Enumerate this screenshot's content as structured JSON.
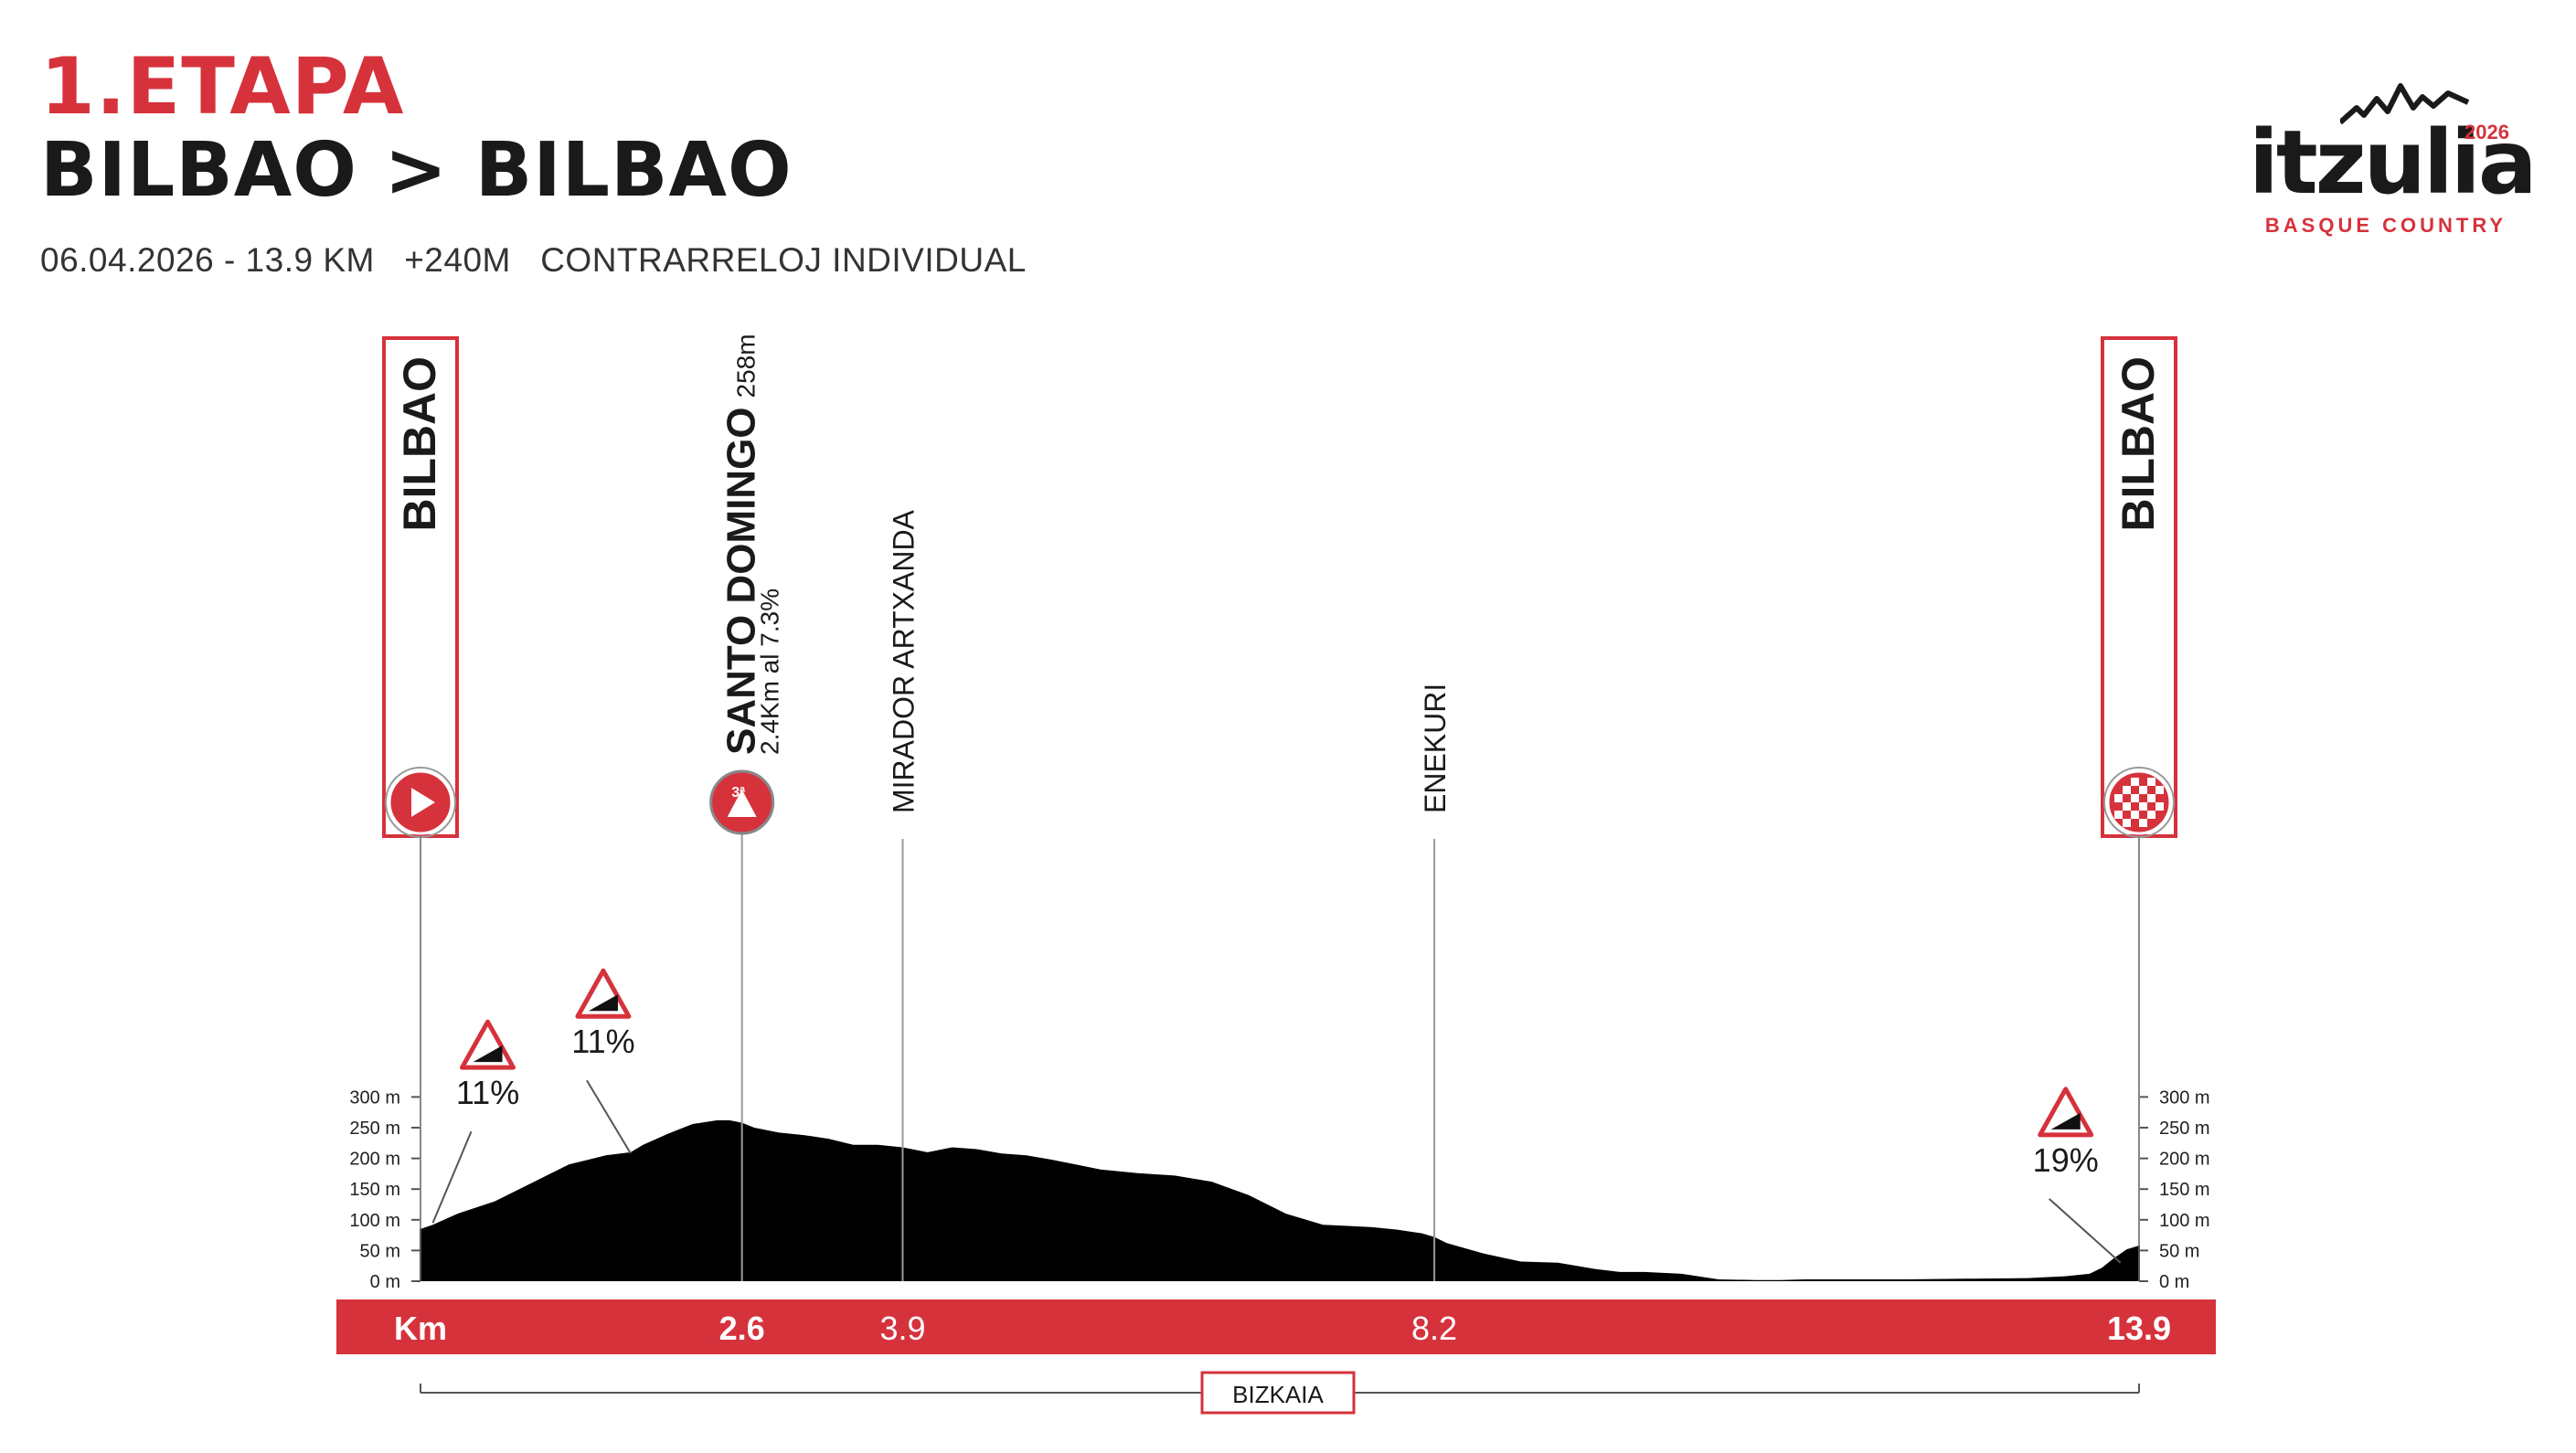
{
  "header": {
    "stage": "1.ETAPA",
    "route": "BILBAO > BILBAO",
    "meta": "06.04.2026 - 13.9 KM   +240M   CONTRARRELOJ INDIVIDUAL"
  },
  "logo": {
    "word": "itzulia",
    "year": "2026",
    "subtitle": "BASQUE COUNTRY"
  },
  "colors": {
    "accent": "#d6323c",
    "profile": "#000000",
    "text": "#1a1a1a"
  },
  "chart_data": {
    "type": "area",
    "x_label": "Km",
    "xlim": [
      0,
      13.9
    ],
    "ylim": [
      0,
      300
    ],
    "y_ticks": [
      0,
      50,
      100,
      150,
      200,
      250,
      300
    ],
    "y_tick_suffix": " m",
    "x_ticks": [
      {
        "km": 2.6,
        "label": "2.6",
        "bold": true
      },
      {
        "km": 3.9,
        "label": "3.9",
        "bold": false
      },
      {
        "km": 8.2,
        "label": "8.2",
        "bold": false
      },
      {
        "km": 13.9,
        "label": "13.9",
        "bold": true
      }
    ],
    "profile": {
      "x": [
        0,
        0.1,
        0.3,
        0.6,
        0.9,
        1.2,
        1.5,
        1.7,
        1.8,
        2.0,
        2.2,
        2.4,
        2.5,
        2.6,
        2.7,
        2.9,
        3.1,
        3.3,
        3.5,
        3.7,
        3.9,
        4.1,
        4.3,
        4.5,
        4.7,
        4.9,
        5.1,
        5.3,
        5.5,
        5.8,
        6.1,
        6.4,
        6.7,
        7.0,
        7.3,
        7.5,
        7.7,
        7.9,
        8.1,
        8.2,
        8.3,
        8.6,
        8.9,
        9.2,
        9.5,
        9.7,
        9.9,
        10.2,
        10.5,
        10.8,
        11.0,
        11.2,
        11.5,
        12.0,
        12.5,
        13.0,
        13.3,
        13.5,
        13.6,
        13.7,
        13.8,
        13.9
      ],
      "y": [
        85,
        92,
        110,
        130,
        160,
        190,
        205,
        210,
        222,
        240,
        256,
        262,
        262,
        258,
        250,
        242,
        238,
        232,
        222,
        222,
        218,
        210,
        218,
        215,
        208,
        205,
        198,
        190,
        182,
        176,
        172,
        162,
        140,
        110,
        92,
        90,
        88,
        84,
        78,
        72,
        62,
        45,
        32,
        30,
        20,
        15,
        15,
        12,
        3,
        2,
        2,
        3,
        3,
        3,
        4,
        5,
        8,
        12,
        22,
        38,
        52,
        58
      ]
    },
    "points": [
      {
        "km": 0,
        "name": "BILBAO",
        "bold": true,
        "kind": "start",
        "badge": true
      },
      {
        "km": 2.6,
        "name": "SANTO DOMINGO",
        "suffix": "258m",
        "detail": "2.4Km al 7.3%",
        "bold": true,
        "kind": "climb",
        "category": "3ª"
      },
      {
        "km": 3.9,
        "name": "MIRADOR ARTXANDA",
        "bold": false,
        "kind": "place"
      },
      {
        "km": 8.2,
        "name": "ENEKURI",
        "bold": false,
        "kind": "place"
      },
      {
        "km": 13.9,
        "name": "BILBAO",
        "bold": true,
        "kind": "finish",
        "badge": true
      }
    ],
    "gradients": [
      {
        "value": "11%",
        "km": 0.1,
        "elev": 95
      },
      {
        "value": "11%",
        "km": 1.7,
        "elev": 208
      },
      {
        "value": "19%",
        "km": 13.75,
        "elev": 30
      }
    ],
    "region": "BIZKAIA"
  }
}
